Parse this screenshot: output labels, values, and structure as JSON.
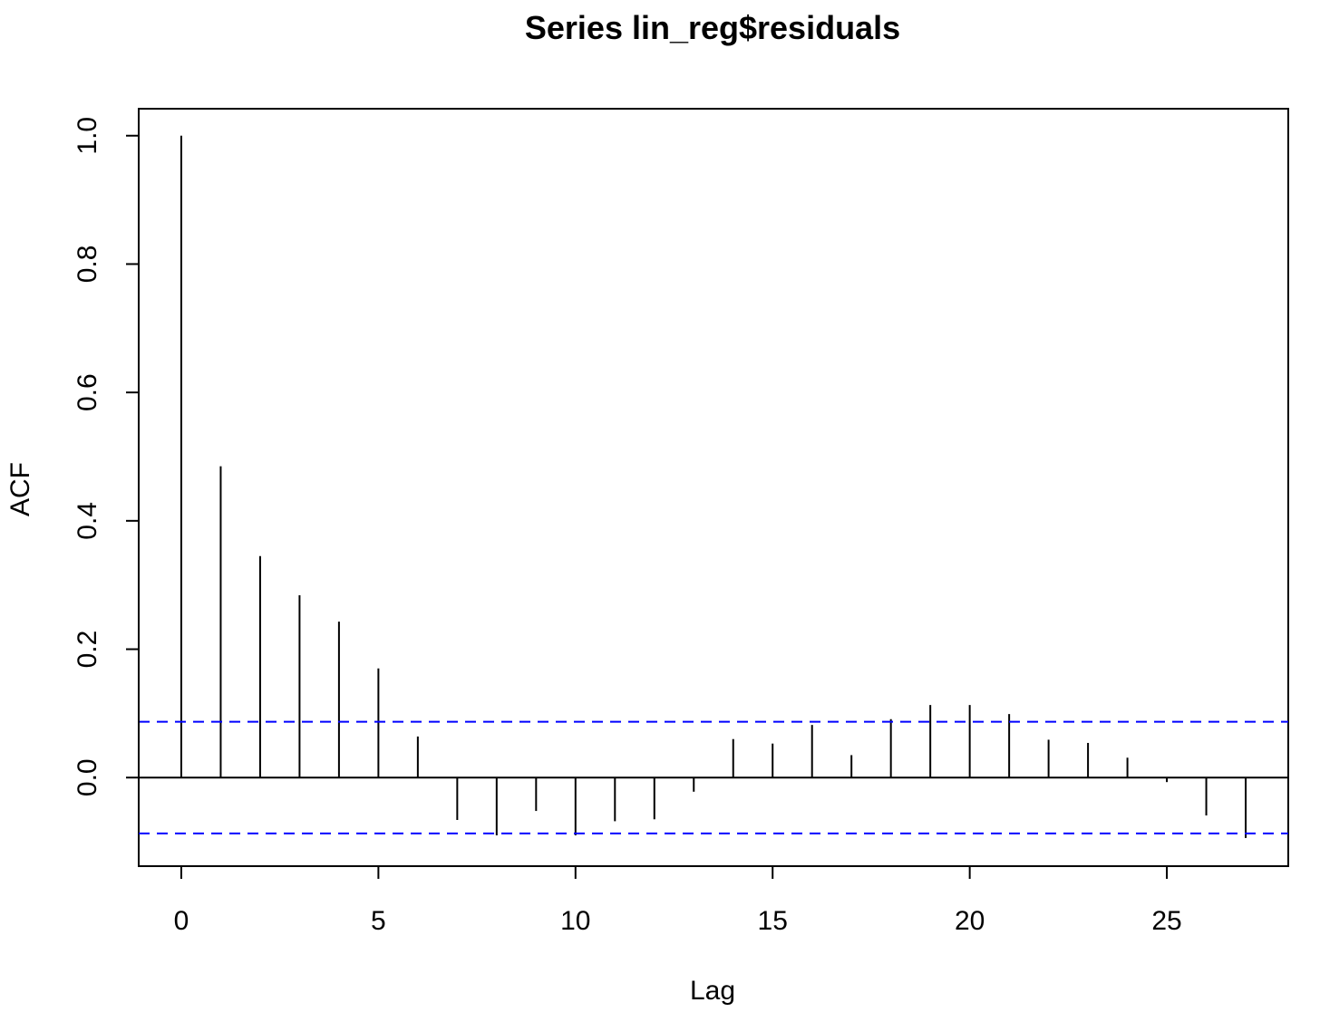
{
  "chart_data": {
    "type": "bar",
    "title": "Series  lin_reg$residuals",
    "xlabel": "Lag",
    "ylabel": "ACF",
    "xlim": [
      -1.08,
      28.08
    ],
    "ylim": [
      -0.138,
      1.042
    ],
    "x_ticks": [
      0,
      5,
      10,
      15,
      20,
      25
    ],
    "y_ticks": [
      0.0,
      0.2,
      0.4,
      0.6,
      0.8,
      1.0
    ],
    "x_tick_labels": [
      "0",
      "5",
      "10",
      "15",
      "20",
      "25"
    ],
    "y_tick_labels": [
      "0.0",
      "0.2",
      "0.4",
      "0.6",
      "0.8",
      "1.0"
    ],
    "lags": [
      0,
      1,
      2,
      3,
      4,
      5,
      6,
      7,
      8,
      9,
      10,
      11,
      12,
      13,
      14,
      15,
      16,
      17,
      18,
      19,
      20,
      21,
      22,
      23,
      24,
      25,
      26,
      27
    ],
    "acf": [
      1.0,
      0.485,
      0.345,
      0.284,
      0.243,
      0.17,
      0.064,
      -0.066,
      -0.09,
      -0.052,
      -0.09,
      -0.068,
      -0.065,
      -0.022,
      0.06,
      0.053,
      0.082,
      0.035,
      0.091,
      0.113,
      0.113,
      0.099,
      0.059,
      0.054,
      0.031,
      -0.007,
      -0.059,
      -0.094
    ],
    "confidence_band": 0.087,
    "grid": false,
    "colors": {
      "bars": "#000000",
      "confidence": "#0000ff",
      "axis": "#000000"
    }
  }
}
